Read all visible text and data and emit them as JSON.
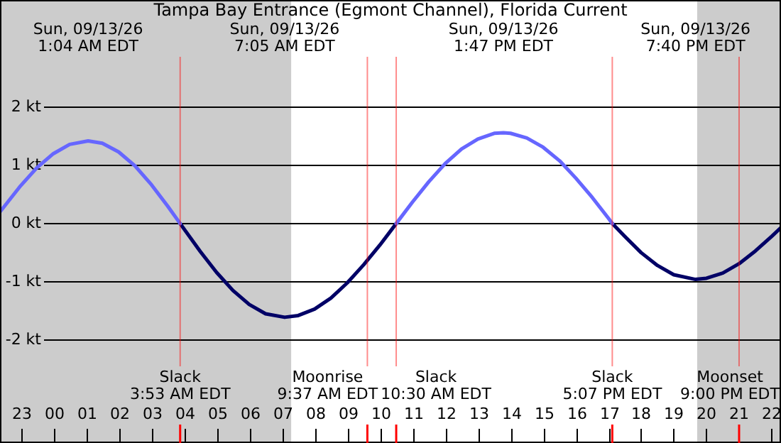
{
  "chart_data": {
    "type": "line",
    "title": "Tampa Bay Entrance (Egmont Channel), Florida Current",
    "xlim": [
      "--09-12T22:22",
      "--09-13T22:17"
    ],
    "ylim": [
      -3.77,
      3.84
    ],
    "xticks": [
      {
        "value": "--09-12T23:00",
        "label": "23"
      },
      {
        "value": "--09-13T00:00",
        "label": "00"
      },
      {
        "value": "--09-13T01:00",
        "label": "01"
      },
      {
        "value": "--09-13T02:00",
        "label": "02"
      },
      {
        "value": "--09-13T03:00",
        "label": "03"
      },
      {
        "value": "--09-13T04:00",
        "label": "04"
      },
      {
        "value": "--09-13T05:00",
        "label": "05"
      },
      {
        "value": "--09-13T06:00",
        "label": "06"
      },
      {
        "value": "--09-13T07:00",
        "label": "07"
      },
      {
        "value": "--09-13T08:00",
        "label": "08"
      },
      {
        "value": "--09-13T09:00",
        "label": "09"
      },
      {
        "value": "--09-13T10:00",
        "label": "10"
      },
      {
        "value": "--09-13T11:00",
        "label": "11"
      },
      {
        "value": "--09-13T12:00",
        "label": "12"
      },
      {
        "value": "--09-13T13:00",
        "label": "13"
      },
      {
        "value": "--09-13T14:00",
        "label": "14"
      },
      {
        "value": "--09-13T15:00",
        "label": "15"
      },
      {
        "value": "--09-13T16:00",
        "label": "16"
      },
      {
        "value": "--09-13T17:00",
        "label": "17"
      },
      {
        "value": "--09-13T18:00",
        "label": "18"
      },
      {
        "value": "--09-13T19:00",
        "label": "19"
      },
      {
        "value": "--09-13T20:00",
        "label": "20"
      },
      {
        "value": "--09-13T21:00",
        "label": "21"
      },
      {
        "value": "--09-13T22:00",
        "label": "22"
      }
    ],
    "yticks": [
      {
        "value": -2,
        "label": "-2 kt"
      },
      {
        "value": -1,
        "label": "-1 kt"
      },
      {
        "value": 0,
        "label": "0 kt"
      },
      {
        "value": 1,
        "label": "1 kt"
      },
      {
        "value": 2,
        "label": "2 kt"
      }
    ],
    "grid": "y",
    "legend": false,
    "marker": "none",
    "line_style": "solid",
    "series": [
      {
        "color": "#6666ff",
        "x": [
          "--09-12T22:22",
          "--09-12T23:00",
          "--09-12T23:30",
          "--09-13T00:00",
          "--09-13T00:30",
          "--09-13T01:04",
          "--09-13T01:30",
          "--09-13T02:00",
          "--09-13T02:30",
          "--09-13T03:00",
          "--09-13T03:30",
          "--09-13T03:53",
          "--09-13T07:00",
          "--09-13T10:30",
          "--09-13T11:00",
          "--09-13T11:30",
          "--09-13T12:00",
          "--09-13T12:30",
          "--09-13T13:00",
          "--09-13T13:30",
          "--09-13T13:47",
          "--09-13T14:00",
          "--09-13T14:30",
          "--09-13T15:00",
          "--09-13T15:30",
          "--09-13T16:00",
          "--09-13T16:30",
          "--09-13T17:00",
          "--09-13T17:07"
        ],
        "values": [
          0.2,
          0.65,
          0.96,
          1.2,
          1.36,
          1.42,
          1.38,
          1.23,
          0.99,
          0.67,
          0.3,
          0,
          null,
          0,
          0.37,
          0.72,
          1.03,
          1.28,
          1.45,
          1.55,
          1.56,
          1.55,
          1.47,
          1.31,
          1.08,
          0.78,
          0.45,
          0.09,
          0
        ]
      },
      {
        "color": "#000066",
        "x": [
          "--09-13T03:53",
          "--09-13T04:30",
          "--09-13T05:00",
          "--09-13T05:30",
          "--09-13T06:00",
          "--09-13T06:30",
          "--09-13T07:05",
          "--09-13T07:30",
          "--09-13T08:00",
          "--09-13T08:30",
          "--09-13T09:00",
          "--09-13T09:30",
          "--09-13T10:00",
          "--09-13T10:30",
          "--09-13T14:00",
          "--09-13T17:07",
          "--09-13T17:30",
          "--09-13T18:00",
          "--09-13T18:30",
          "--09-13T19:00",
          "--09-13T19:40",
          "--09-13T20:00",
          "--09-13T20:30",
          "--09-13T21:00",
          "--09-13T21:30",
          "--09-13T22:00",
          "--09-13T22:17"
        ],
        "values": [
          0,
          -0.48,
          -0.84,
          -1.15,
          -1.39,
          -1.55,
          -1.61,
          -1.58,
          -1.47,
          -1.28,
          -1.02,
          -0.71,
          -0.37,
          0,
          null,
          0,
          -0.22,
          -0.5,
          -0.72,
          -0.88,
          -0.96,
          -0.94,
          -0.85,
          -0.69,
          -0.47,
          -0.22,
          -0.07
        ]
      }
    ],
    "bands": [
      {
        "axis": "x",
        "from": "--09-12T22:22",
        "to": "--09-13T07:17",
        "color": "#cccccc"
      },
      {
        "axis": "x",
        "from": "--09-13T19:43",
        "to": "--09-13T22:17",
        "color": "#cccccc"
      }
    ],
    "ref_lines": [
      {
        "axis": "x",
        "value": "--09-13T03:53",
        "label": "Slack\n3:53 AM EDT",
        "color": "#ff0000"
      },
      {
        "axis": "x",
        "value": "--09-13T09:37",
        "label": "Moonrise\n9:37 AM EDT",
        "color": "#ff0000"
      },
      {
        "axis": "x",
        "value": "--09-13T10:30",
        "label": "Slack\n10:30 AM EDT",
        "color": "#ff0000"
      },
      {
        "axis": "x",
        "value": "--09-13T17:07",
        "label": "Slack\n5:07 PM EDT",
        "color": "#ff0000"
      },
      {
        "axis": "x",
        "value": "--09-13T21:00",
        "label": "Moonset\n9:00 PM EDT",
        "color": "#ff0000"
      }
    ],
    "annotations": [
      "Sun, 09/13/26\n1:04 AM EDT",
      "Sun, 09/13/26\n7:05 AM EDT",
      "Sun, 09/13/26\n1:47 PM EDT",
      "Sun, 09/13/26\n7:40 PM EDT"
    ]
  }
}
